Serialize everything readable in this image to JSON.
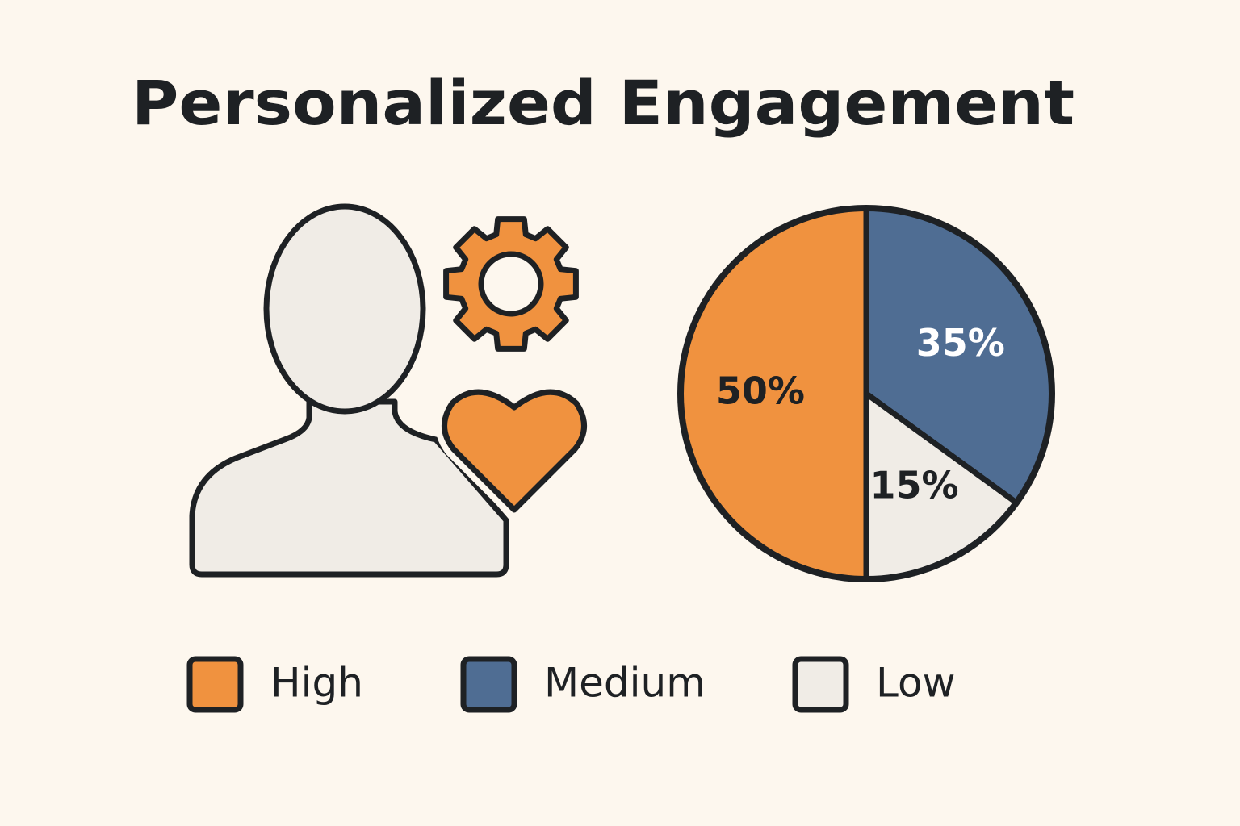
{
  "chart_data": {
    "type": "pie",
    "title": "Personalized Engagement",
    "categories": [
      "High",
      "Medium",
      "Low"
    ],
    "values": [
      50,
      35,
      15
    ],
    "value_labels": [
      "50%",
      "35%",
      "15%"
    ],
    "colors": [
      "#f0923f",
      "#4f6d93",
      "#f0ece6"
    ],
    "value_label_colors": [
      "#1e2124",
      "#ffffff",
      "#1e2124"
    ]
  }
}
